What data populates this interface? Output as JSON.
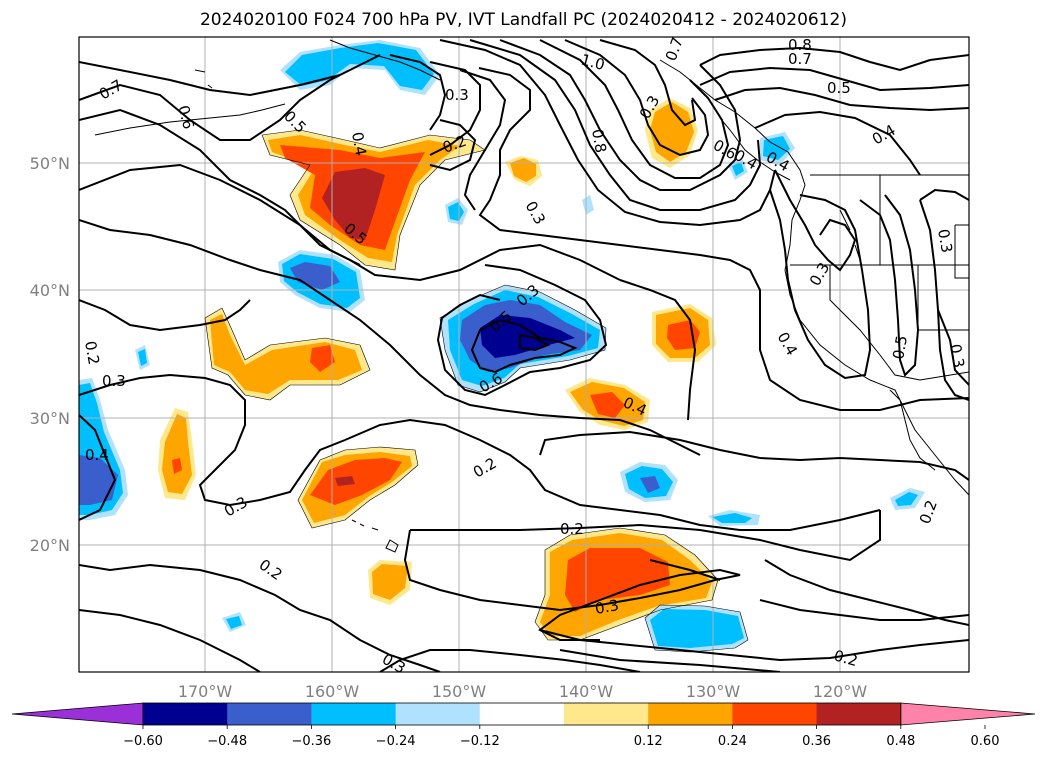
{
  "title": "2024020100 F024 700 hPa PV, IVT Landfall PC (2024020412 - 2024020612)",
  "lat_labels": [
    "50°N",
    "40°N",
    "30°N",
    "20°N"
  ],
  "lon_labels": [
    "170°W",
    "160°W",
    "150°W",
    "140°W",
    "130°W",
    "120°W"
  ],
  "contour_labels": [
    "0.7",
    "0.6",
    "0.5",
    "0.4",
    "0.3",
    "0.2",
    "0.5",
    "0.2",
    "0.3",
    "0.5",
    "0.6",
    "0.2",
    "0.3",
    "0.4",
    "0.2",
    "0.3",
    "0.3",
    "0.2",
    "0.3",
    "0.2",
    "0.2",
    "0.4",
    "1.0",
    "0.7",
    "0.8",
    "0.8",
    "0.7",
    "0.5",
    "0.4",
    "0.6",
    "0.4",
    "0.3",
    "0.3",
    "0.4",
    "0.5",
    "0.3",
    "0.3",
    "0.3",
    "0.4"
  ],
  "colorbar": {
    "colors": [
      "#9b30d9",
      "#000090",
      "#3a5fcd",
      "#00bfff",
      "#b0e2ff",
      "#ffffff",
      "#fee88b",
      "#ffa500",
      "#ff4500",
      "#b22222",
      "#ff82ab"
    ],
    "tick_labels": [
      "−0.60",
      "−0.48",
      "−0.36",
      "−0.24",
      "−0.12",
      "0.12",
      "0.24",
      "0.36",
      "0.48",
      "0.60"
    ]
  },
  "fill_colors": {
    "neg_light": "#b0e2ff",
    "neg_mid": "#00bfff",
    "neg_strong": "#3a5fcd",
    "neg_max": "#000090",
    "pos_light": "#fee88b",
    "pos_mid": "#ffa500",
    "pos_strong": "#ff4500",
    "pos_max": "#b22222"
  }
}
